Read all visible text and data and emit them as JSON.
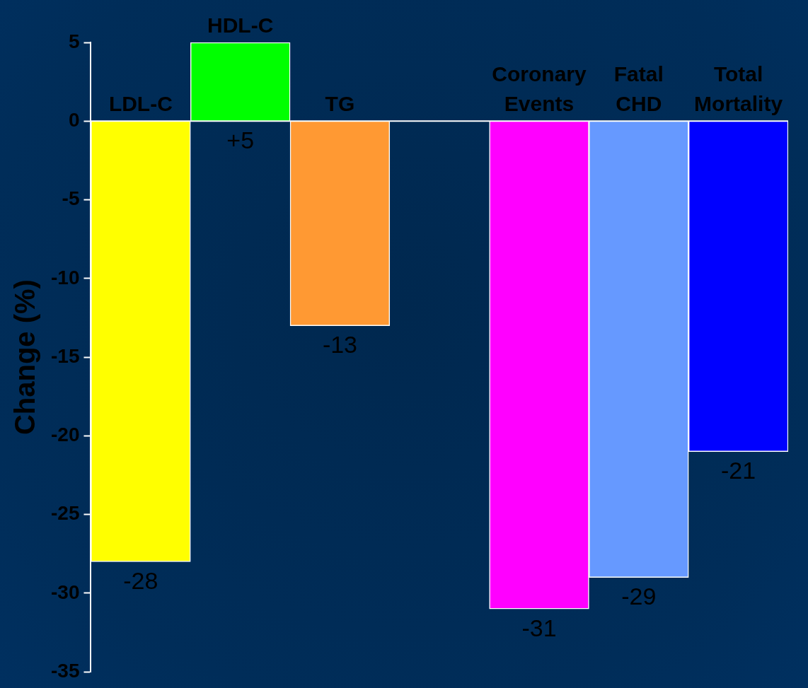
{
  "chart_data": {
    "type": "bar",
    "ylabel": "Change (%)",
    "categories": [
      "LDL-C",
      "HDL-C",
      "TG",
      null,
      "Coronary Events",
      "Fatal CHD",
      "Total Mortality"
    ],
    "values": [
      -28,
      5,
      -13,
      null,
      -31,
      -29,
      -21
    ],
    "colors": [
      "#ffff00",
      "#00ff00",
      "#ff9933",
      null,
      "#ff00ff",
      "#6699ff",
      "#0000ff"
    ],
    "value_labels": [
      "-28",
      "+5",
      "-13",
      null,
      "-31",
      "-29",
      "-21"
    ],
    "ylim": [
      -35,
      5
    ],
    "yticks": [
      -35,
      -30,
      -25,
      -20,
      -15,
      -10,
      -5,
      0,
      5
    ],
    "grid": false,
    "legend": false
  }
}
